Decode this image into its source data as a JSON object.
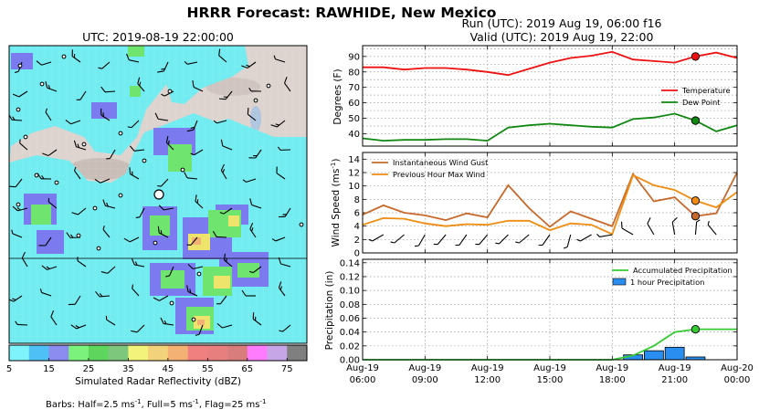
{
  "figure": {
    "title": "HRRR Forecast: RAWHIDE, New Mexico",
    "run_line": "Run (UTC): 2019 Aug 19, 06:00 f16",
    "valid_line": "Valid (UTC): 2019 Aug 19, 22:00",
    "barbs_note_prefix": "Barbs: Half=2.5 ms",
    "barbs_note_mid1": ", Full=5 ms",
    "barbs_note_mid2": ", Flag=25 ms",
    "unit_sup": "-1"
  },
  "map": {
    "title": "UTC: 2019-08-19 22:00:00",
    "colorbar_label": "Simulated Radar Reflectivity (dBZ)",
    "colorbar_ticks": [
      "5",
      "15",
      "25",
      "35",
      "45",
      "55",
      "65",
      "75"
    ],
    "colorbar_colors": [
      "#7ff3fb",
      "#4fc0f5",
      "#8b8bf0",
      "#7bf27b",
      "#5ed65e",
      "#7cc77c",
      "#f3f37c",
      "#f2d27a",
      "#f3b173",
      "#f08080",
      "#e77f7f",
      "#d97c7c",
      "#ff7bff",
      "#c7a6e8",
      "#7f7f7f"
    ],
    "colors": {
      "terrain": "#ddd3cf",
      "radar_light": "#72ecf0",
      "radar_blue": "#7b7bef",
      "radar_green": "#6fe46f",
      "radar_yellow": "#efe46b"
    }
  },
  "colors": {
    "temperature": "#ee1111",
    "dewpoint": "#118811",
    "gust": "#c8682a",
    "maxwind": "#f08c10",
    "accum": "#33cc33",
    "hourly": "#2a8ef0"
  },
  "chart_data": [
    {
      "type": "line",
      "ylabel": "Degrees (F)",
      "ylim": [
        32,
        97
      ],
      "yticks": [
        "40",
        "50",
        "60",
        "70",
        "80",
        "90"
      ],
      "x": [
        "06:00",
        "07:00",
        "08:00",
        "09:00",
        "10:00",
        "11:00",
        "12:00",
        "13:00",
        "14:00",
        "15:00",
        "16:00",
        "17:00",
        "18:00",
        "19:00",
        "20:00",
        "21:00",
        "22:00",
        "23:00",
        "00:00"
      ],
      "series": [
        {
          "name": "Temperature",
          "values": [
            83,
            83,
            81.5,
            82.5,
            82.5,
            81.5,
            80,
            78,
            82,
            86,
            89,
            90.5,
            93,
            88,
            87,
            86,
            90,
            92.5,
            89
          ]
        },
        {
          "name": "Dew Point",
          "values": [
            37,
            35.5,
            36,
            36,
            36.5,
            36.5,
            35.5,
            44,
            45.5,
            46.5,
            45.5,
            44.5,
            44,
            49.5,
            50.5,
            53,
            48.5,
            41.5,
            45.5
          ]
        }
      ],
      "highlight_index": 16,
      "legend": "right",
      "grid": true
    },
    {
      "type": "line",
      "ylabel": "Wind Speed (ms",
      "ylim": [
        0,
        15
      ],
      "yticks": [
        "0",
        "2",
        "4",
        "6",
        "8",
        "10",
        "12",
        "14"
      ],
      "series": [
        {
          "name": "Instantaneous Wind Gust",
          "values": [
            5.7,
            7.1,
            6,
            5.6,
            4.9,
            5.9,
            5.3,
            10.1,
            6.7,
            3.9,
            6.2,
            5.1,
            4,
            11.8,
            7.7,
            8.3,
            5.5,
            5.9,
            12
          ]
        },
        {
          "name": "Previous Hour Max Wind",
          "values": [
            4.2,
            5.2,
            5.1,
            4.4,
            4,
            4.3,
            4.2,
            4.8,
            4.8,
            3.4,
            4.4,
            4.2,
            2.8,
            11.6,
            10.1,
            9.4,
            7.8,
            6.8,
            9.1
          ]
        }
      ],
      "barbs": [
        {
          "speed": 3,
          "dir": 250
        },
        {
          "speed": 3,
          "dir": 240
        },
        {
          "speed": 2.5,
          "dir": 230
        },
        {
          "speed": 2.5,
          "dir": 210
        },
        {
          "speed": 3,
          "dir": 220
        },
        {
          "speed": 3,
          "dir": 215
        },
        {
          "speed": 2.5,
          "dir": 220
        },
        {
          "speed": 3,
          "dir": 225
        },
        {
          "speed": 3,
          "dir": 230
        },
        {
          "speed": 2.5,
          "dir": 215
        },
        {
          "speed": 2.5,
          "dir": 195
        },
        {
          "speed": 2.5,
          "dir": 240
        },
        {
          "speed": 3,
          "dir": 260
        },
        {
          "speed": 5,
          "dir": 300
        },
        {
          "speed": 5,
          "dir": 330
        },
        {
          "speed": 5,
          "dir": 350
        },
        {
          "speed": 4,
          "dir": 5
        },
        {
          "speed": 3,
          "dir": 320
        },
        {
          "speed": 5,
          "dir": 340
        }
      ],
      "highlight_index": 16,
      "legend": "top-left",
      "grid": true
    },
    {
      "type": "bar",
      "ylabel": "Precipitation (in)",
      "ylim": [
        0,
        0.145
      ],
      "yticks": [
        "0.00",
        "0.02",
        "0.04",
        "0.06",
        "0.08",
        "0.10",
        "0.12",
        "0.14"
      ],
      "xticks": [
        [
          "Aug-19",
          "06:00"
        ],
        [
          "Aug-19",
          "09:00"
        ],
        [
          "Aug-19",
          "12:00"
        ],
        [
          "Aug-19",
          "15:00"
        ],
        [
          "Aug-19",
          "18:00"
        ],
        [
          "Aug-19",
          "21:00"
        ],
        [
          "Aug-20",
          "00:00"
        ]
      ],
      "series": [
        {
          "name": "Accumulated Precipitation",
          "values": [
            0,
            0,
            0,
            0,
            0,
            0,
            0,
            0,
            0,
            0,
            0,
            0,
            0,
            0.006,
            0.02,
            0.04,
            0.044,
            0.044,
            0.044
          ]
        },
        {
          "name": "1 hour Precipitation",
          "values": [
            0,
            0,
            0,
            0,
            0,
            0,
            0,
            0,
            0,
            0,
            0,
            0,
            0,
            0.007,
            0.013,
            0.018,
            0.004,
            0,
            0
          ]
        }
      ],
      "highlight_index": 16,
      "legend": "top-right",
      "grid": true
    }
  ]
}
